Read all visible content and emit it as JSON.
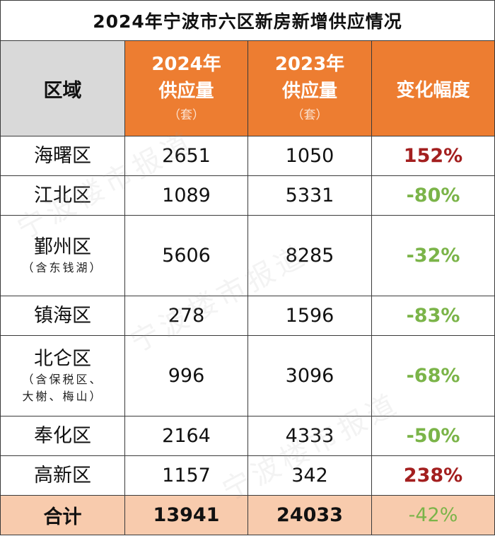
{
  "title": "2024年宁波市六区新房新增供应情况",
  "header": {
    "region": "区域",
    "col2024_line1": "2024年",
    "col2024_line2": "供应量",
    "col2024_unit": "（套）",
    "col2023_line1": "2023年",
    "col2023_line2": "供应量",
    "col2023_unit": "（套）",
    "change": "变化幅度"
  },
  "rows": [
    {
      "region": "海曙区",
      "sub": "",
      "sub2": "",
      "v2024": "2651",
      "v2023": "1050",
      "change": "152%",
      "trend": "up"
    },
    {
      "region": "江北区",
      "sub": "",
      "sub2": "",
      "v2024": "1089",
      "v2023": "5331",
      "change": "-80%",
      "trend": "down"
    },
    {
      "region": "鄞州区",
      "sub": "（含东钱湖）",
      "sub2": "",
      "v2024": "5606",
      "v2023": "8285",
      "change": "-32%",
      "trend": "down"
    },
    {
      "region": "镇海区",
      "sub": "",
      "sub2": "",
      "v2024": "278",
      "v2023": "1596",
      "change": "-83%",
      "trend": "down"
    },
    {
      "region": "北仑区",
      "sub": "（含保税区、",
      "sub2": "大榭、梅山）",
      "v2024": "996",
      "v2023": "3096",
      "change": "-68%",
      "trend": "down"
    },
    {
      "region": "奉化区",
      "sub": "",
      "sub2": "",
      "v2024": "2164",
      "v2023": "4333",
      "change": "-50%",
      "trend": "down"
    },
    {
      "region": "高新区",
      "sub": "",
      "sub2": "",
      "v2024": "1157",
      "v2023": "342",
      "change": "238%",
      "trend": "up"
    }
  ],
  "total": {
    "label": "合计",
    "v2024": "13941",
    "v2023": "24033",
    "change": "-42%"
  },
  "watermark": "宁波楼市报道",
  "colors": {
    "header": "#ed7d31",
    "header_first": "#d9d9d9",
    "total_bg": "#f8cbad",
    "up": "#a31f1f",
    "down": "#7bb449"
  }
}
